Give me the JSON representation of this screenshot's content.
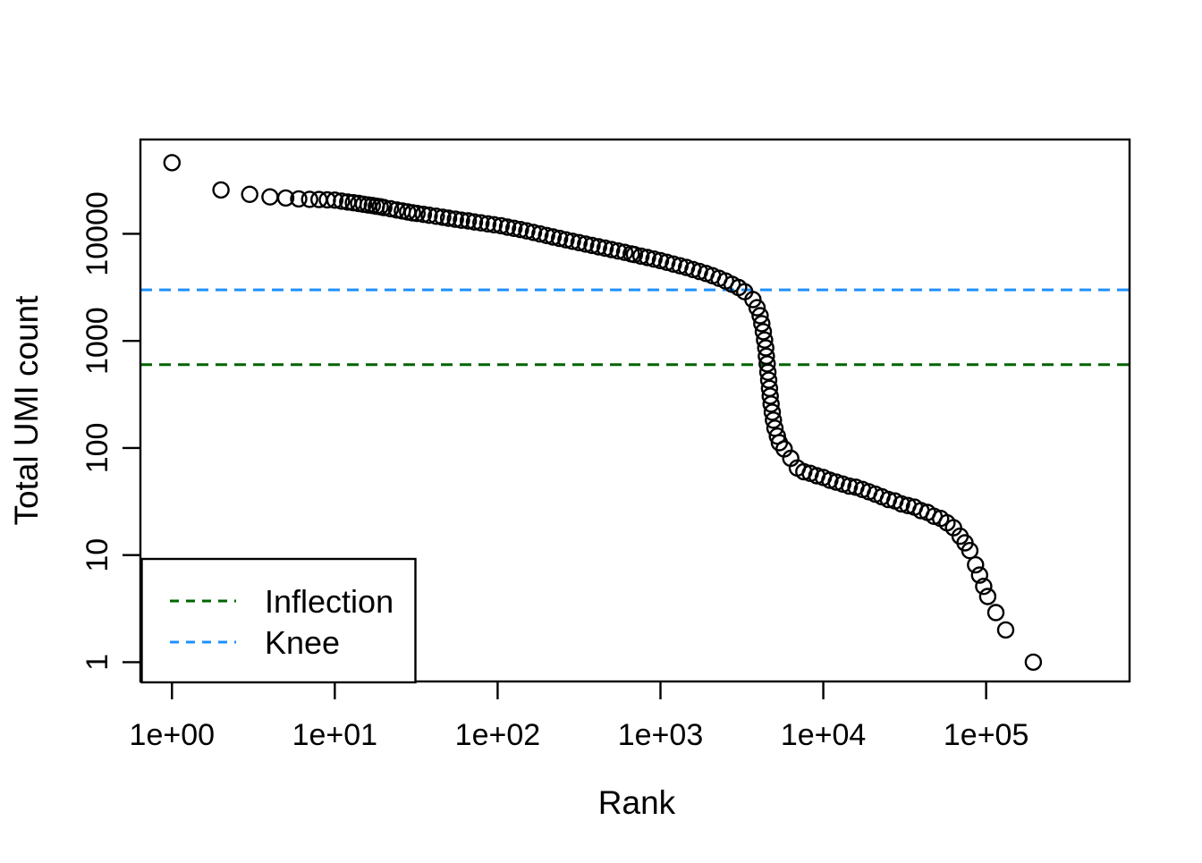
{
  "chart_data": {
    "type": "scatter",
    "title": "",
    "xlabel": "Rank",
    "ylabel": "Total UMI count",
    "x_scale": "log10",
    "y_scale": "log10",
    "xlim": [
      0.64,
      760000
    ],
    "ylim": [
      0.66,
      76000
    ],
    "grid": false,
    "marker": {
      "shape": "open-circle",
      "color": "#000000"
    },
    "x_ticks": [
      {
        "value": 1,
        "label": "1e+00"
      },
      {
        "value": 10,
        "label": "1e+01"
      },
      {
        "value": 100,
        "label": "1e+02"
      },
      {
        "value": 1000,
        "label": "1e+03"
      },
      {
        "value": 10000,
        "label": "1e+04"
      },
      {
        "value": 100000,
        "label": "1e+05"
      }
    ],
    "y_ticks": [
      {
        "value": 1,
        "label": "1"
      },
      {
        "value": 10,
        "label": "10"
      },
      {
        "value": 100,
        "label": "100"
      },
      {
        "value": 1000,
        "label": "1000"
      },
      {
        "value": 10000,
        "label": "10000"
      }
    ],
    "reference_lines": [
      {
        "name": "Knee",
        "value": 3000,
        "color": "#1E90FF",
        "style": "dashed"
      },
      {
        "name": "Inflection",
        "value": 600,
        "color": "#006400",
        "style": "dashed"
      }
    ],
    "legend": {
      "position": "bottom-left",
      "items": [
        {
          "label": "Inflection",
          "color": "#006400",
          "style": "dashed"
        },
        {
          "label": "Knee",
          "color": "#1E90FF",
          "style": "dashed"
        }
      ]
    },
    "points": [
      [
        1,
        46200
      ],
      [
        2,
        25700
      ],
      [
        3,
        23400
      ],
      [
        4,
        22100
      ],
      [
        5,
        21600
      ],
      [
        6,
        21200
      ],
      [
        7,
        21000
      ],
      [
        8,
        20900
      ],
      [
        9,
        20750
      ],
      [
        10,
        20650
      ],
      [
        11,
        20200
      ],
      [
        12,
        19800
      ],
      [
        13,
        19500
      ],
      [
        14,
        19200
      ],
      [
        15,
        18900
      ],
      [
        16,
        18600
      ],
      [
        17,
        18400
      ],
      [
        18,
        18100
      ],
      [
        19,
        17900
      ],
      [
        20,
        17600
      ],
      [
        22,
        17150
      ],
      [
        24,
        16700
      ],
      [
        26,
        16350
      ],
      [
        28,
        16000
      ],
      [
        30,
        15700
      ],
      [
        32,
        15500
      ],
      [
        35,
        15200
      ],
      [
        38,
        14900
      ],
      [
        42,
        14600
      ],
      [
        46,
        14300
      ],
      [
        50,
        14000
      ],
      [
        55,
        13700
      ],
      [
        60,
        13400
      ],
      [
        66,
        13200
      ],
      [
        72,
        12900
      ],
      [
        79,
        12650
      ],
      [
        87,
        12400
      ],
      [
        95,
        12150
      ],
      [
        105,
        11900
      ],
      [
        115,
        11550
      ],
      [
        126,
        11250
      ],
      [
        138,
        10950
      ],
      [
        151,
        10650
      ],
      [
        166,
        10300
      ],
      [
        182,
        9980
      ],
      [
        200,
        9660
      ],
      [
        219,
        9350
      ],
      [
        240,
        9060
      ],
      [
        263,
        8780
      ],
      [
        288,
        8520
      ],
      [
        316,
        8270
      ],
      [
        347,
        8030
      ],
      [
        380,
        7790
      ],
      [
        417,
        7560
      ],
      [
        457,
        7340
      ],
      [
        501,
        7120
      ],
      [
        550,
        6910
      ],
      [
        603,
        6710
      ],
      [
        661,
        6500
      ],
      [
        692,
        6400
      ],
      [
        759,
        6190
      ],
      [
        832,
        6000
      ],
      [
        912,
        5810
      ],
      [
        1000,
        5620
      ],
      [
        1096,
        5420
      ],
      [
        1202,
        5220
      ],
      [
        1318,
        5030
      ],
      [
        1445,
        4850
      ],
      [
        1585,
        4640
      ],
      [
        1738,
        4450
      ],
      [
        1905,
        4260
      ],
      [
        2089,
        4060
      ],
      [
        2291,
        3840
      ],
      [
        2512,
        3630
      ],
      [
        2754,
        3380
      ],
      [
        3020,
        3150
      ],
      [
        3290,
        2880
      ],
      [
        3700,
        2430
      ],
      [
        3920,
        2040
      ],
      [
        4090,
        1720
      ],
      [
        4190,
        1450
      ],
      [
        4280,
        1220
      ],
      [
        4360,
        1020
      ],
      [
        4430,
        860
      ],
      [
        4470,
        720
      ],
      [
        4520,
        610
      ],
      [
        4570,
        510
      ],
      [
        4620,
        430
      ],
      [
        4670,
        360
      ],
      [
        4720,
        305
      ],
      [
        4780,
        257
      ],
      [
        4860,
        216
      ],
      [
        4940,
        182
      ],
      [
        5050,
        153
      ],
      [
        5220,
        129
      ],
      [
        5370,
        112
      ],
      [
        5750,
        98
      ],
      [
        6310,
        80
      ],
      [
        6920,
        65
      ],
      [
        7590,
        60
      ],
      [
        8320,
        58
      ],
      [
        9120,
        55
      ],
      [
        10000,
        53
      ],
      [
        10970,
        50
      ],
      [
        12020,
        48
      ],
      [
        13180,
        46
      ],
      [
        14450,
        44
      ],
      [
        15850,
        43
      ],
      [
        17380,
        41
      ],
      [
        19050,
        39
      ],
      [
        20890,
        37
      ],
      [
        22910,
        35
      ],
      [
        25120,
        33
      ],
      [
        27540,
        32
      ],
      [
        30200,
        30
      ],
      [
        33110,
        29
      ],
      [
        36310,
        28
      ],
      [
        39810,
        26
      ],
      [
        43650,
        25
      ],
      [
        47860,
        23
      ],
      [
        52480,
        22
      ],
      [
        57540,
        20
      ],
      [
        63100,
        18
      ],
      [
        69180,
        15
      ],
      [
        74130,
        13
      ],
      [
        79430,
        11
      ],
      [
        86100,
        8.1
      ],
      [
        91200,
        6.5
      ],
      [
        96600,
        5.1
      ],
      [
        102300,
        4.1
      ],
      [
        114800,
        2.9
      ],
      [
        131800,
        2.0
      ],
      [
        195000,
        1.0
      ]
    ]
  }
}
